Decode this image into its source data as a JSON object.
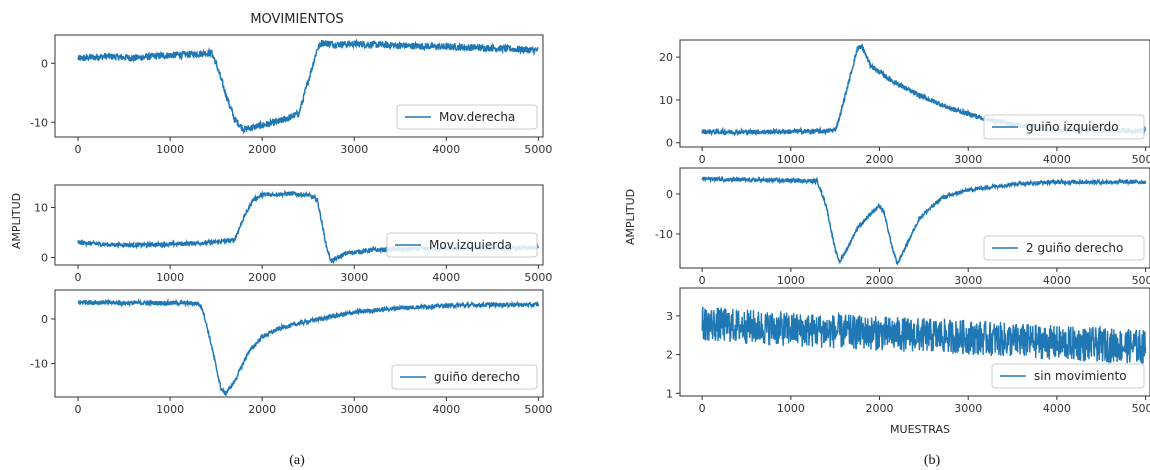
{
  "figure": {
    "left_title": "MOVIMIENTOS",
    "left_ylabel": "AMPLITUD",
    "right_ylabel": "AMPLITUD",
    "right_xlabel": "MUESTRAS",
    "caption_a": "(a)",
    "caption_b": "(b)",
    "line_color": "#1f77b4"
  },
  "chart_data": [
    {
      "type": "line",
      "title": "MOVIMIENTOS",
      "series": [
        {
          "name": "Mov.derecha"
        }
      ],
      "legend": "bottom-right",
      "xlim": [
        -250,
        5050
      ],
      "ylim": [
        -12.5,
        4.8
      ],
      "xticks": [
        0,
        1000,
        2000,
        3000,
        4000,
        5000
      ],
      "yticks": [
        0,
        -10
      ],
      "noise": 0.6,
      "points": [
        [
          0,
          0.8
        ],
        [
          300,
          1.2
        ],
        [
          600,
          0.9
        ],
        [
          900,
          1.3
        ],
        [
          1200,
          1.5
        ],
        [
          1450,
          1.8
        ],
        [
          1500,
          0.0
        ],
        [
          1600,
          -5.0
        ],
        [
          1700,
          -9.5
        ],
        [
          1800,
          -11.2
        ],
        [
          2000,
          -10.5
        ],
        [
          2200,
          -9.8
        ],
        [
          2400,
          -8.5
        ],
        [
          2500,
          -3.0
        ],
        [
          2600,
          2.5
        ],
        [
          2650,
          3.5
        ],
        [
          2800,
          3.2
        ],
        [
          3000,
          3.3
        ],
        [
          3500,
          3.0
        ],
        [
          4000,
          2.8
        ],
        [
          4500,
          2.6
        ],
        [
          5000,
          2.2
        ]
      ]
    },
    {
      "type": "line",
      "series": [
        {
          "name": "Mov.izquierda"
        }
      ],
      "legend": "bottom-right",
      "xlim": [
        -250,
        5050
      ],
      "ylim": [
        -1.5,
        14.5
      ],
      "xticks": [
        0,
        1000,
        2000,
        3000,
        4000,
        5000
      ],
      "yticks": [
        10,
        0
      ],
      "noise": 0.45,
      "points": [
        [
          0,
          3.0
        ],
        [
          300,
          2.6
        ],
        [
          600,
          2.5
        ],
        [
          900,
          2.6
        ],
        [
          1200,
          2.8
        ],
        [
          1450,
          3.0
        ],
        [
          1600,
          3.3
        ],
        [
          1700,
          3.5
        ],
        [
          1800,
          8.0
        ],
        [
          1900,
          11.5
        ],
        [
          2000,
          12.5
        ],
        [
          2300,
          12.8
        ],
        [
          2500,
          12.5
        ],
        [
          2600,
          11.5
        ],
        [
          2700,
          2.0
        ],
        [
          2750,
          -0.8
        ],
        [
          2900,
          0.8
        ],
        [
          3200,
          1.5
        ],
        [
          3600,
          1.7
        ],
        [
          4000,
          1.8
        ],
        [
          4600,
          1.8
        ],
        [
          5000,
          1.9
        ]
      ]
    },
    {
      "type": "line",
      "series": [
        {
          "name": "guiño derecho"
        }
      ],
      "legend": "bottom-right",
      "xlim": [
        -250,
        5050
      ],
      "ylim": [
        -17.5,
        6.5
      ],
      "xticks": [
        0,
        1000,
        2000,
        3000,
        4000,
        5000
      ],
      "yticks": [
        0,
        -10
      ],
      "noise": 0.5,
      "points": [
        [
          0,
          3.8
        ],
        [
          500,
          3.6
        ],
        [
          1000,
          3.6
        ],
        [
          1300,
          3.5
        ],
        [
          1350,
          2.5
        ],
        [
          1450,
          -6.0
        ],
        [
          1550,
          -15.5
        ],
        [
          1600,
          -16.8
        ],
        [
          1700,
          -14.0
        ],
        [
          1850,
          -7.5
        ],
        [
          2000,
          -4.0
        ],
        [
          2200,
          -2.0
        ],
        [
          2500,
          -0.5
        ],
        [
          3000,
          1.5
        ],
        [
          3500,
          2.5
        ],
        [
          4000,
          3.0
        ],
        [
          4500,
          3.2
        ],
        [
          5000,
          3.2
        ]
      ]
    },
    {
      "type": "line",
      "series": [
        {
          "name": "guiño izquierdo"
        }
      ],
      "legend": "bottom-right",
      "xlim": [
        -250,
        5050
      ],
      "ylim": [
        -1,
        24
      ],
      "xticks": [
        0,
        1000,
        2000,
        3000,
        4000,
        5000
      ],
      "yticks": [
        20,
        10,
        0
      ],
      "noise": 0.6,
      "points": [
        [
          0,
          2.6
        ],
        [
          500,
          2.5
        ],
        [
          1000,
          2.6
        ],
        [
          1400,
          2.7
        ],
        [
          1500,
          3.0
        ],
        [
          1550,
          6.0
        ],
        [
          1650,
          14.0
        ],
        [
          1750,
          22.0
        ],
        [
          1800,
          22.5
        ],
        [
          1900,
          18.0
        ],
        [
          2100,
          15.0
        ],
        [
          2400,
          11.5
        ],
        [
          2800,
          8.0
        ],
        [
          3200,
          5.5
        ],
        [
          3600,
          4.0
        ],
        [
          4000,
          3.0
        ],
        [
          5000,
          2.8
        ]
      ]
    },
    {
      "type": "line",
      "series": [
        {
          "name": "2 guiño derecho"
        }
      ],
      "legend": "bottom-right",
      "xlim": [
        -250,
        5050
      ],
      "ylim": [
        -18.5,
        6.5
      ],
      "xticks": [
        0,
        1000,
        2000,
        3000,
        4000,
        5000
      ],
      "yticks": [
        0,
        -10
      ],
      "noise": 0.5,
      "points": [
        [
          0,
          3.8
        ],
        [
          500,
          3.5
        ],
        [
          1000,
          3.4
        ],
        [
          1300,
          3.2
        ],
        [
          1400,
          -3.0
        ],
        [
          1500,
          -14.0
        ],
        [
          1550,
          -17.0
        ],
        [
          1650,
          -13.0
        ],
        [
          1750,
          -8.5
        ],
        [
          1900,
          -5.0
        ],
        [
          2000,
          -3.0
        ],
        [
          2050,
          -4.5
        ],
        [
          2150,
          -14.0
        ],
        [
          2200,
          -17.5
        ],
        [
          2300,
          -13.0
        ],
        [
          2450,
          -6.0
        ],
        [
          2700,
          -1.0
        ],
        [
          3000,
          1.0
        ],
        [
          3500,
          2.5
        ],
        [
          4000,
          3.0
        ],
        [
          5000,
          3.0
        ]
      ]
    },
    {
      "type": "line",
      "series": [
        {
          "name": "sin movimiento"
        }
      ],
      "legend": "bottom-right",
      "xlim": [
        -250,
        5050
      ],
      "ylim": [
        0.93,
        3.72
      ],
      "xticks": [
        0,
        1000,
        2000,
        3000,
        4000,
        5000
      ],
      "yticks": [
        3,
        2,
        1
      ],
      "xlabel": "MUESTRAS",
      "noise": 0.45,
      "points": [
        [
          0,
          2.8
        ],
        [
          1000,
          2.65
        ],
        [
          2000,
          2.55
        ],
        [
          3000,
          2.45
        ],
        [
          4000,
          2.3
        ],
        [
          5000,
          2.2
        ]
      ]
    }
  ]
}
